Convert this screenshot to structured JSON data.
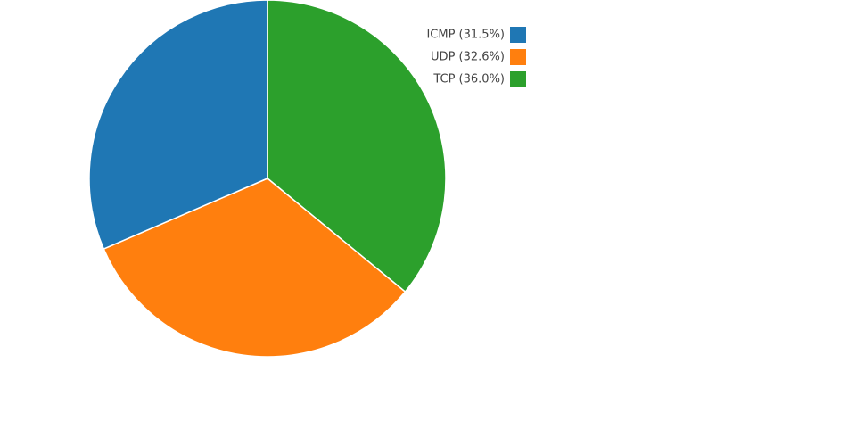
{
  "chart_data": {
    "type": "pie",
    "categories": [
      "ICMP (31.5%)",
      "UDP (32.6%)",
      "TCP (36.0%)"
    ],
    "values": [
      31.5,
      32.6,
      36.0
    ],
    "colors": [
      "#1f77b4",
      "#ff7f0e",
      "#2ca02c"
    ],
    "legend": "top-right"
  }
}
